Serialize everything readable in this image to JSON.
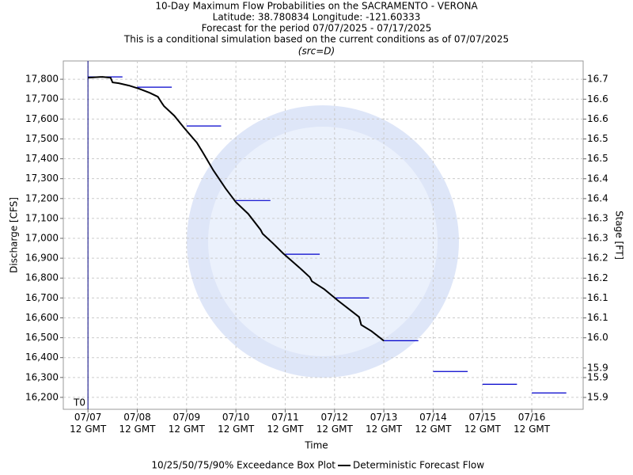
{
  "chart_data": {
    "type": "line",
    "title": "10-Day Maximum Flow Probabilities on the SACRAMENTO - VERONA",
    "subtitles": [
      "Latitude: 38.780834 Longitude: -121.60333",
      "Forecast for the period 07/07/2025 - 07/17/2025",
      "This is a conditional simulation based on the current conditions as of 07/07/2025"
    ],
    "source_label": "(src=D)",
    "t0_label": "T0",
    "t0": "2025-07-07T12:00Z",
    "x_label": "Time",
    "y_label": "Discharge [CFS]",
    "y2_label": "Stage [FT]",
    "xlim": [
      "2025-07-07T00:00Z",
      "2025-07-17T13:00Z"
    ],
    "xticks": [
      {
        "value": "2025-07-07T12:00Z",
        "label": "07/07\n12 GMT"
      },
      {
        "value": "2025-07-08T12:00Z",
        "label": "07/08\n12 GMT"
      },
      {
        "value": "2025-07-09T12:00Z",
        "label": "07/09\n12 GMT"
      },
      {
        "value": "2025-07-10T12:00Z",
        "label": "07/10\n12 GMT"
      },
      {
        "value": "2025-07-11T12:00Z",
        "label": "07/11\n12 GMT"
      },
      {
        "value": "2025-07-12T12:00Z",
        "label": "07/12\n12 GMT"
      },
      {
        "value": "2025-07-13T12:00Z",
        "label": "07/13\n12 GMT"
      },
      {
        "value": "2025-07-14T12:00Z",
        "label": "07/14\n12 GMT"
      },
      {
        "value": "2025-07-15T12:00Z",
        "label": "07/15\n12 GMT"
      },
      {
        "value": "2025-07-16T12:00Z",
        "label": "07/16\n12 GMT"
      }
    ],
    "ylim": [
      16140,
      17892
    ],
    "yticks": [
      {
        "value": 16200,
        "label": "16,200"
      },
      {
        "value": 16300,
        "label": "16,300"
      },
      {
        "value": 16400,
        "label": "16,400"
      },
      {
        "value": 16500,
        "label": "16,500"
      },
      {
        "value": 16600,
        "label": "16,600"
      },
      {
        "value": 16700,
        "label": "16,700"
      },
      {
        "value": 16800,
        "label": "16,800"
      },
      {
        "value": 16900,
        "label": "16,900"
      },
      {
        "value": 17000,
        "label": "17,000"
      },
      {
        "value": 17100,
        "label": "17,100"
      },
      {
        "value": 17200,
        "label": "17,200"
      },
      {
        "value": 17300,
        "label": "17,300"
      },
      {
        "value": 17400,
        "label": "17,400"
      },
      {
        "value": 17500,
        "label": "17,500"
      },
      {
        "value": 17600,
        "label": "17,600"
      },
      {
        "value": 17700,
        "label": "17,700"
      },
      {
        "value": 17800,
        "label": "17,800"
      }
    ],
    "y2lim": [
      15.837,
      16.748
    ],
    "y2ticks": [
      {
        "value": 15.868,
        "label": "15.9"
      },
      {
        "value": 15.92,
        "label": "15.9"
      },
      {
        "value": 15.945,
        "label": "15.9"
      },
      {
        "value": 16.024,
        "label": "16.0"
      },
      {
        "value": 16.076,
        "label": "16.1"
      },
      {
        "value": 16.128,
        "label": "16.1"
      },
      {
        "value": 16.18,
        "label": "16.2"
      },
      {
        "value": 16.232,
        "label": "16.2"
      },
      {
        "value": 16.284,
        "label": "16.3"
      },
      {
        "value": 16.336,
        "label": "16.3"
      },
      {
        "value": 16.388,
        "label": "16.4"
      },
      {
        "value": 16.44,
        "label": "16.4"
      },
      {
        "value": 16.492,
        "label": "16.5"
      },
      {
        "value": 16.544,
        "label": "16.5"
      },
      {
        "value": 16.596,
        "label": "16.6"
      },
      {
        "value": 16.648,
        "label": "16.6"
      },
      {
        "value": 16.7,
        "label": "16.7"
      }
    ],
    "grid": true,
    "series": [
      {
        "name": "10/25/50/75/90% Exceedance Box Plot",
        "type": "box",
        "color": "#0000cc",
        "x": [
          "2025-07-07T12:00Z",
          "2025-07-08T12:00Z",
          "2025-07-09T12:00Z",
          "2025-07-10T12:00Z",
          "2025-07-11T12:00Z",
          "2025-07-12T12:00Z",
          "2025-07-13T12:00Z",
          "2025-07-14T12:00Z",
          "2025-07-15T12:00Z",
          "2025-07-16T12:00Z"
        ],
        "values": [
          17812,
          17760,
          17565,
          17190,
          16920,
          16700,
          16485,
          16330,
          16266,
          16222
        ]
      },
      {
        "name": "Deterministic Forecast Flow",
        "type": "line",
        "color": "#000000",
        "x": [
          "2025-07-07T12:00Z",
          "2025-07-07T19:00Z",
          "2025-07-07T23:00Z",
          "2025-07-08T00:00Z",
          "2025-07-08T03:00Z",
          "2025-07-08T08:00Z",
          "2025-07-08T13:00Z",
          "2025-07-08T18:00Z",
          "2025-07-08T22:00Z",
          "2025-07-09T00:00Z",
          "2025-07-09T01:00Z",
          "2025-07-09T06:00Z",
          "2025-07-09T11:00Z",
          "2025-07-09T17:00Z",
          "2025-07-09T20:00Z",
          "2025-07-10T01:00Z",
          "2025-07-10T07:00Z",
          "2025-07-10T12:00Z",
          "2025-07-10T18:00Z",
          "2025-07-11T00:00Z",
          "2025-07-11T01:00Z",
          "2025-07-11T06:00Z",
          "2025-07-11T11:00Z",
          "2025-07-11T19:00Z",
          "2025-07-12T00:00Z",
          "2025-07-12T01:00Z",
          "2025-07-12T07:00Z",
          "2025-07-12T14:00Z",
          "2025-07-12T20:00Z",
          "2025-07-13T00:00Z",
          "2025-07-13T01:00Z",
          "2025-07-13T06:00Z",
          "2025-07-13T12:00Z"
        ],
        "values": [
          17808,
          17812,
          17808,
          17784,
          17780,
          17768,
          17752,
          17732,
          17712,
          17680,
          17665,
          17617,
          17553,
          17481,
          17430,
          17342,
          17250,
          17182,
          17123,
          17043,
          17023,
          16975,
          16924,
          16852,
          16804,
          16784,
          16744,
          16684,
          16636,
          16604,
          16565,
          16533,
          16485
        ]
      }
    ]
  }
}
